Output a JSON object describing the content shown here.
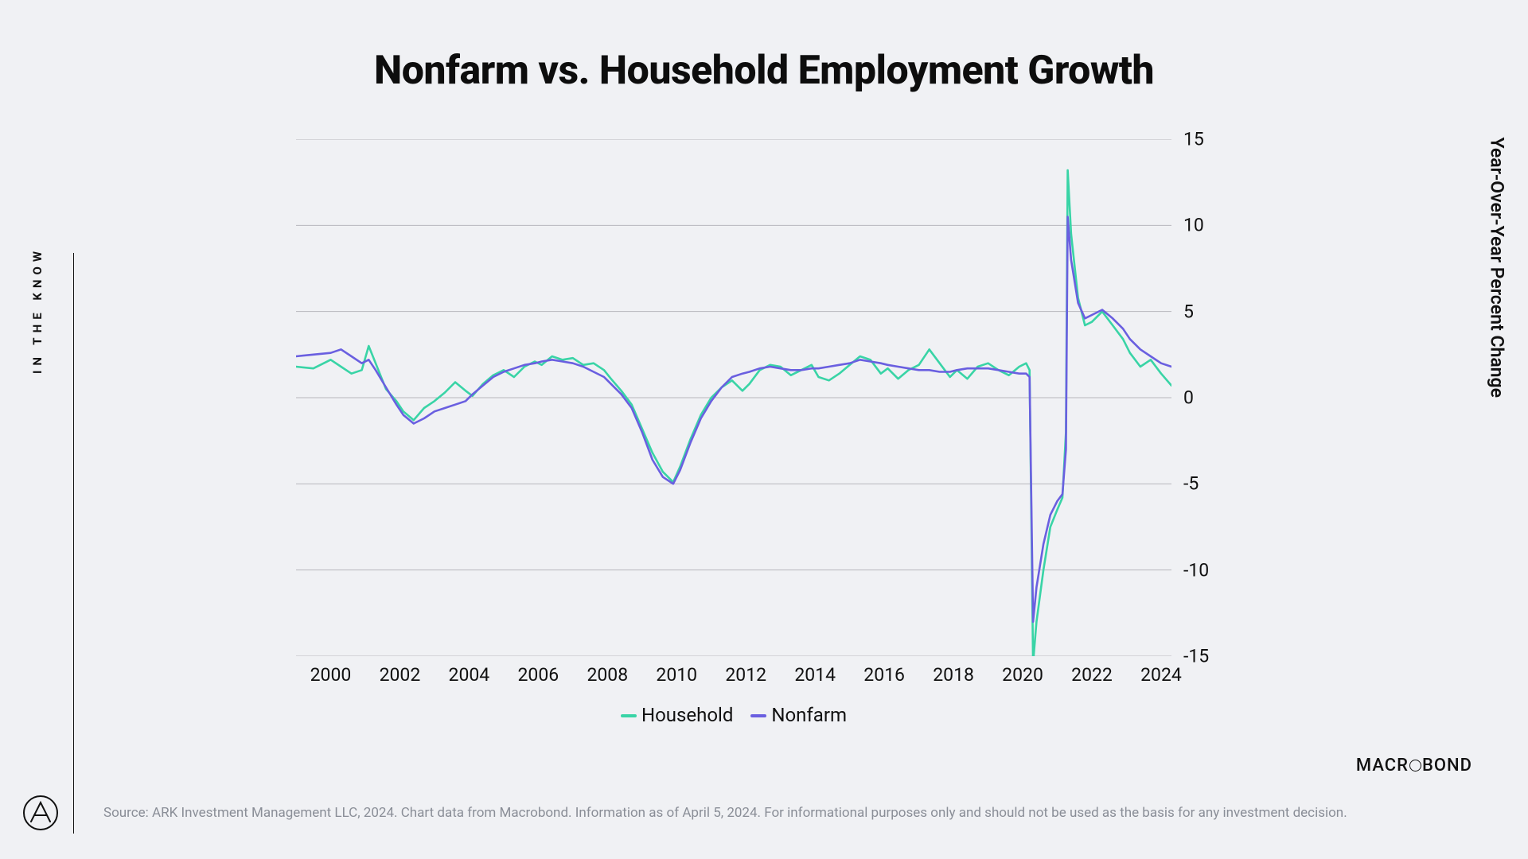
{
  "title": "Nonfarm vs. Household Employment Growth",
  "sidebar_label": "IN THE KNOW",
  "y_axis_label": "Year-Over-Year Percent Change",
  "source_text": "Source: ARK Investment Management LLC, 2024. Chart data from Macrobond. Information as of April 5, 2024. For informational purposes only and should not be used as the basis for any investment decision.",
  "brand": "MACROBOND",
  "chart": {
    "type": "line",
    "background": "#f0f1f4",
    "grid_color": "#b7b7bd",
    "x_start": 1999.0,
    "x_end": 2024.3,
    "y_min": -15,
    "y_max": 15,
    "y_step": 5,
    "x_ticks": [
      2000,
      2002,
      2004,
      2006,
      2008,
      2010,
      2012,
      2014,
      2016,
      2018,
      2020,
      2022,
      2024
    ],
    "y_ticks": [
      -15,
      -10,
      -5,
      0,
      5,
      10,
      15
    ],
    "legend": [
      {
        "label": "Household",
        "color": "#39d4a6"
      },
      {
        "label": "Nonfarm",
        "color": "#6a5fe0"
      }
    ],
    "line_width": 2.6,
    "series": {
      "household": {
        "color": "#39d4a6",
        "data": [
          [
            1999.0,
            1.8
          ],
          [
            1999.5,
            1.7
          ],
          [
            2000.0,
            2.2
          ],
          [
            2000.3,
            1.8
          ],
          [
            2000.6,
            1.4
          ],
          [
            2000.9,
            1.6
          ],
          [
            2001.1,
            3.0
          ],
          [
            2001.3,
            2.0
          ],
          [
            2001.6,
            0.5
          ],
          [
            2001.9,
            -0.2
          ],
          [
            2002.1,
            -0.8
          ],
          [
            2002.4,
            -1.3
          ],
          [
            2002.7,
            -0.6
          ],
          [
            2003.0,
            -0.2
          ],
          [
            2003.3,
            0.3
          ],
          [
            2003.6,
            0.9
          ],
          [
            2003.9,
            0.4
          ],
          [
            2004.1,
            0.1
          ],
          [
            2004.4,
            0.8
          ],
          [
            2004.7,
            1.3
          ],
          [
            2005.0,
            1.6
          ],
          [
            2005.3,
            1.2
          ],
          [
            2005.6,
            1.8
          ],
          [
            2005.9,
            2.1
          ],
          [
            2006.1,
            1.9
          ],
          [
            2006.4,
            2.4
          ],
          [
            2006.7,
            2.2
          ],
          [
            2007.0,
            2.3
          ],
          [
            2007.3,
            1.9
          ],
          [
            2007.6,
            2.0
          ],
          [
            2007.9,
            1.6
          ],
          [
            2008.1,
            1.1
          ],
          [
            2008.4,
            0.4
          ],
          [
            2008.7,
            -0.4
          ],
          [
            2009.0,
            -1.8
          ],
          [
            2009.3,
            -3.2
          ],
          [
            2009.6,
            -4.3
          ],
          [
            2009.9,
            -4.9
          ],
          [
            2010.1,
            -4.0
          ],
          [
            2010.4,
            -2.4
          ],
          [
            2010.7,
            -1.0
          ],
          [
            2011.0,
            0.0
          ],
          [
            2011.3,
            0.6
          ],
          [
            2011.6,
            1.0
          ],
          [
            2011.9,
            0.4
          ],
          [
            2012.1,
            0.8
          ],
          [
            2012.4,
            1.6
          ],
          [
            2012.7,
            1.9
          ],
          [
            2013.0,
            1.8
          ],
          [
            2013.3,
            1.3
          ],
          [
            2013.6,
            1.6
          ],
          [
            2013.9,
            1.9
          ],
          [
            2014.1,
            1.2
          ],
          [
            2014.4,
            1.0
          ],
          [
            2014.7,
            1.4
          ],
          [
            2015.0,
            1.9
          ],
          [
            2015.3,
            2.4
          ],
          [
            2015.6,
            2.2
          ],
          [
            2015.9,
            1.4
          ],
          [
            2016.1,
            1.7
          ],
          [
            2016.4,
            1.1
          ],
          [
            2016.7,
            1.6
          ],
          [
            2017.0,
            1.9
          ],
          [
            2017.3,
            2.8
          ],
          [
            2017.6,
            2.0
          ],
          [
            2017.9,
            1.2
          ],
          [
            2018.1,
            1.6
          ],
          [
            2018.4,
            1.1
          ],
          [
            2018.7,
            1.8
          ],
          [
            2019.0,
            2.0
          ],
          [
            2019.3,
            1.6
          ],
          [
            2019.6,
            1.3
          ],
          [
            2019.9,
            1.8
          ],
          [
            2020.1,
            2.0
          ],
          [
            2020.2,
            1.6
          ],
          [
            2020.3,
            -15.4
          ],
          [
            2020.4,
            -13.0
          ],
          [
            2020.6,
            -10.0
          ],
          [
            2020.8,
            -7.5
          ],
          [
            2021.0,
            -6.5
          ],
          [
            2021.15,
            -5.8
          ],
          [
            2021.25,
            -2.0
          ],
          [
            2021.3,
            13.2
          ],
          [
            2021.4,
            9.5
          ],
          [
            2021.6,
            5.8
          ],
          [
            2021.8,
            4.2
          ],
          [
            2022.0,
            4.4
          ],
          [
            2022.3,
            5.0
          ],
          [
            2022.6,
            4.2
          ],
          [
            2022.9,
            3.4
          ],
          [
            2023.1,
            2.6
          ],
          [
            2023.4,
            1.8
          ],
          [
            2023.7,
            2.2
          ],
          [
            2024.0,
            1.4
          ],
          [
            2024.3,
            0.7
          ]
        ]
      },
      "nonfarm": {
        "color": "#6a5fe0",
        "data": [
          [
            1999.0,
            2.4
          ],
          [
            1999.5,
            2.5
          ],
          [
            2000.0,
            2.6
          ],
          [
            2000.3,
            2.8
          ],
          [
            2000.6,
            2.4
          ],
          [
            2000.9,
            2.0
          ],
          [
            2001.1,
            2.2
          ],
          [
            2001.3,
            1.6
          ],
          [
            2001.6,
            0.6
          ],
          [
            2001.9,
            -0.4
          ],
          [
            2002.1,
            -1.0
          ],
          [
            2002.4,
            -1.5
          ],
          [
            2002.7,
            -1.2
          ],
          [
            2003.0,
            -0.8
          ],
          [
            2003.3,
            -0.6
          ],
          [
            2003.6,
            -0.4
          ],
          [
            2003.9,
            -0.2
          ],
          [
            2004.1,
            0.2
          ],
          [
            2004.4,
            0.7
          ],
          [
            2004.7,
            1.2
          ],
          [
            2005.0,
            1.5
          ],
          [
            2005.3,
            1.7
          ],
          [
            2005.6,
            1.9
          ],
          [
            2005.9,
            2.0
          ],
          [
            2006.1,
            2.1
          ],
          [
            2006.4,
            2.2
          ],
          [
            2006.7,
            2.1
          ],
          [
            2007.0,
            2.0
          ],
          [
            2007.3,
            1.8
          ],
          [
            2007.6,
            1.5
          ],
          [
            2007.9,
            1.2
          ],
          [
            2008.1,
            0.8
          ],
          [
            2008.4,
            0.2
          ],
          [
            2008.7,
            -0.6
          ],
          [
            2009.0,
            -2.0
          ],
          [
            2009.3,
            -3.6
          ],
          [
            2009.6,
            -4.6
          ],
          [
            2009.9,
            -5.0
          ],
          [
            2010.1,
            -4.2
          ],
          [
            2010.4,
            -2.6
          ],
          [
            2010.7,
            -1.2
          ],
          [
            2011.0,
            -0.2
          ],
          [
            2011.3,
            0.6
          ],
          [
            2011.6,
            1.2
          ],
          [
            2011.9,
            1.4
          ],
          [
            2012.1,
            1.5
          ],
          [
            2012.4,
            1.7
          ],
          [
            2012.7,
            1.8
          ],
          [
            2013.0,
            1.7
          ],
          [
            2013.3,
            1.6
          ],
          [
            2013.6,
            1.6
          ],
          [
            2013.9,
            1.7
          ],
          [
            2014.1,
            1.7
          ],
          [
            2014.4,
            1.8
          ],
          [
            2014.7,
            1.9
          ],
          [
            2015.0,
            2.0
          ],
          [
            2015.3,
            2.2
          ],
          [
            2015.6,
            2.1
          ],
          [
            2015.9,
            2.0
          ],
          [
            2016.1,
            1.9
          ],
          [
            2016.4,
            1.8
          ],
          [
            2016.7,
            1.7
          ],
          [
            2017.0,
            1.6
          ],
          [
            2017.3,
            1.6
          ],
          [
            2017.6,
            1.5
          ],
          [
            2017.9,
            1.5
          ],
          [
            2018.1,
            1.6
          ],
          [
            2018.4,
            1.7
          ],
          [
            2018.7,
            1.7
          ],
          [
            2019.0,
            1.7
          ],
          [
            2019.3,
            1.6
          ],
          [
            2019.6,
            1.5
          ],
          [
            2019.9,
            1.4
          ],
          [
            2020.1,
            1.4
          ],
          [
            2020.2,
            1.2
          ],
          [
            2020.3,
            -13.0
          ],
          [
            2020.4,
            -11.0
          ],
          [
            2020.6,
            -8.5
          ],
          [
            2020.8,
            -6.8
          ],
          [
            2021.0,
            -6.0
          ],
          [
            2021.15,
            -5.6
          ],
          [
            2021.25,
            -3.0
          ],
          [
            2021.3,
            10.5
          ],
          [
            2021.4,
            8.0
          ],
          [
            2021.6,
            5.5
          ],
          [
            2021.8,
            4.6
          ],
          [
            2022.0,
            4.8
          ],
          [
            2022.3,
            5.1
          ],
          [
            2022.6,
            4.6
          ],
          [
            2022.9,
            4.0
          ],
          [
            2023.1,
            3.4
          ],
          [
            2023.4,
            2.8
          ],
          [
            2023.7,
            2.4
          ],
          [
            2024.0,
            2.0
          ],
          [
            2024.3,
            1.8
          ]
        ]
      }
    }
  }
}
